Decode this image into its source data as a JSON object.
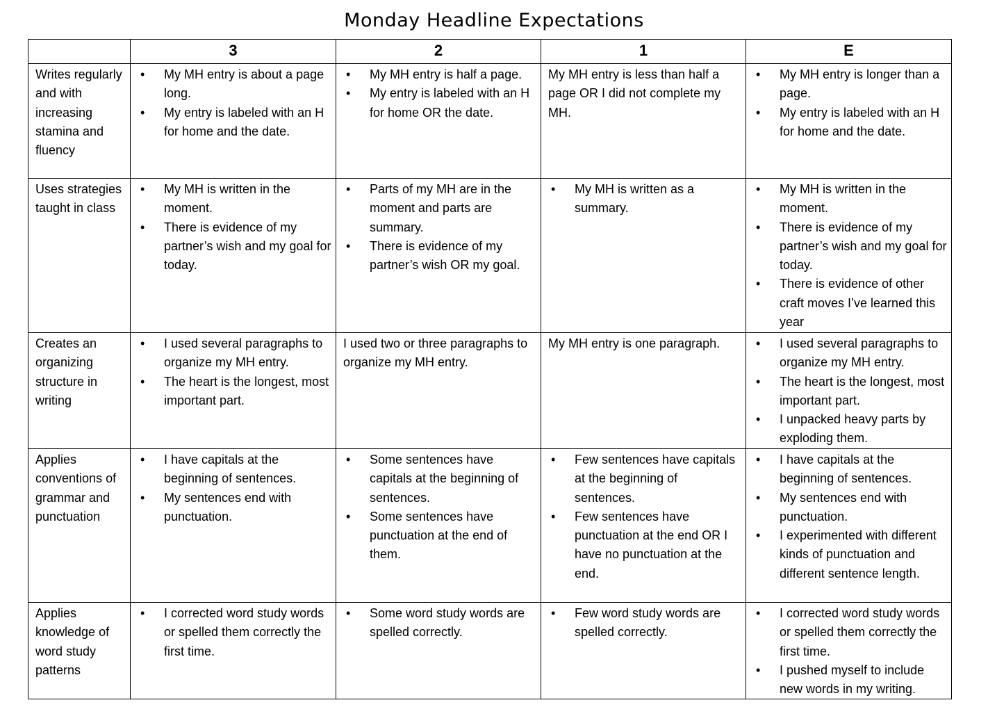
{
  "title": "Monday Headline Expectations",
  "columns": [
    "",
    "3",
    "2",
    "1",
    "E"
  ],
  "rows": [
    {
      "label": "Writes regularly and with increasing stamina and fluency",
      "cells": [
        {
          "bullets": [
            "My MH entry is about a page long.",
            "My entry is labeled with an H for home and the date."
          ]
        },
        {
          "bullets": [
            "My MH entry is half a page.",
            "My entry is labeled with an H for home OR the date."
          ]
        },
        {
          "text": "My MH entry is less than half a page OR I did not complete my MH."
        },
        {
          "bullets": [
            "My MH entry is longer than a page.",
            "My entry is labeled with an H for home and the date."
          ]
        }
      ]
    },
    {
      "label": "Uses strategies taught in class",
      "cells": [
        {
          "bullets": [
            "My MH is written in the moment.",
            "There is evidence of my partner’s wish and my goal for today."
          ]
        },
        {
          "bullets": [
            "Parts of my MH are in the moment and parts are summary.",
            "There is evidence of my partner’s wish OR my goal."
          ]
        },
        {
          "bullets": [
            "My MH is written as a summary."
          ]
        },
        {
          "bullets": [
            "My MH is written in the moment.",
            "There is evidence of my partner’s wish and my goal for today.",
            "There is evidence of other craft moves I’ve learned this year"
          ]
        }
      ]
    },
    {
      "label": "Creates an organizing structure in writing",
      "cells": [
        {
          "bullets": [
            "I used several paragraphs to organize my MH entry.",
            "The heart is the longest, most important part."
          ]
        },
        {
          "text": "I used two or three paragraphs to organize my MH entry."
        },
        {
          "text": "My MH entry is one paragraph."
        },
        {
          "bullets": [
            "I used several paragraphs to organize my MH entry.",
            "The heart is the longest, most important part.",
            "I unpacked heavy parts by exploding them."
          ]
        }
      ]
    },
    {
      "label": "Applies conventions of grammar and punctuation",
      "cells": [
        {
          "bullets": [
            "I have capitals at the beginning of sentences.",
            "My sentences end with punctuation."
          ]
        },
        {
          "bullets": [
            "Some sentences have capitals at the beginning of sentences.",
            "Some sentences have punctuation at the end of them."
          ]
        },
        {
          "bullets": [
            "Few sentences have capitals at the beginning of sentences.",
            "Few sentences have punctuation at the end OR I have no punctuation at the end."
          ]
        },
        {
          "bullets": [
            "I have capitals at the beginning of sentences.",
            "My sentences end with punctuation.",
            "I experimented with different kinds of punctuation and different sentence length."
          ]
        }
      ]
    },
    {
      "label": "Applies knowledge of word study patterns",
      "cells": [
        {
          "bullets": [
            "I corrected word study words or spelled them correctly the first time."
          ]
        },
        {
          "bullets": [
            "Some word study words are spelled correctly."
          ]
        },
        {
          "bullets": [
            "Few word study words are spelled correctly."
          ]
        },
        {
          "bullets": [
            "I corrected word study words or spelled them correctly the first time.",
            "I pushed myself to include new words in my writing."
          ]
        }
      ]
    }
  ]
}
